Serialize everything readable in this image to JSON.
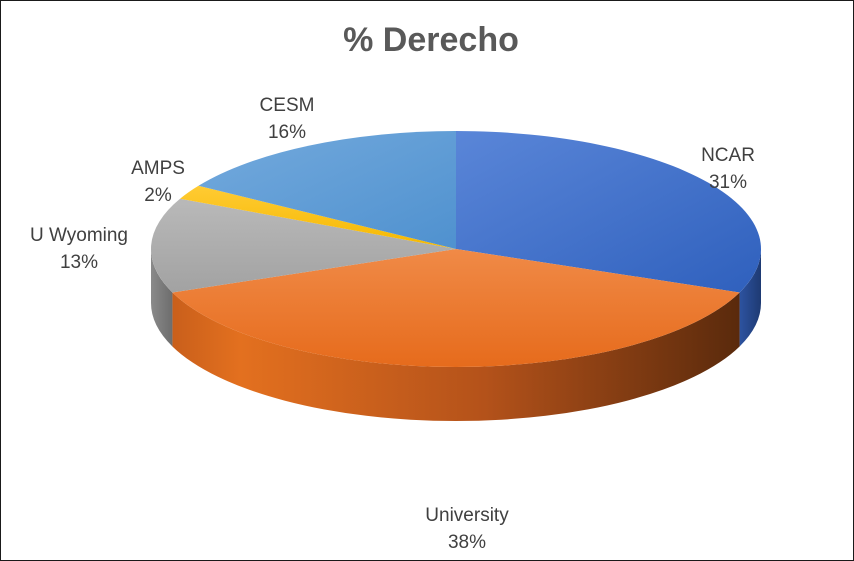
{
  "chart_data": {
    "type": "pie",
    "title": "% Derecho",
    "categories": [
      "NCAR",
      "University",
      "U Wyoming",
      "AMPS",
      "CESM"
    ],
    "values": [
      31,
      38,
      13,
      2,
      16
    ],
    "labels": [
      "31%",
      "38%",
      "13%",
      "2%",
      "16%"
    ],
    "colors": [
      "#3F6FC6",
      "#ED7D31",
      "#A5A5A5",
      "#FFC000",
      "#5B9BD5"
    ],
    "style": "3d",
    "legend": "none",
    "data_labels": "outside"
  }
}
